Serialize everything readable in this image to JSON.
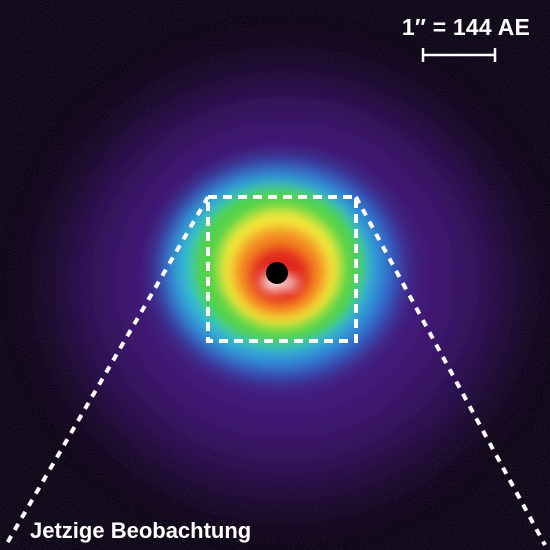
{
  "image": {
    "scale_label": "1″ = 144 AE",
    "caption": "Jetzige Beobachtung",
    "colors": {
      "background": "#0a0410",
      "halo_outer": "#4a1f86",
      "halo_blue": "#2f7ae0",
      "cyan": "#36c9d6",
      "green": "#52d24a",
      "yellow": "#f2e83a",
      "orange": "#f48a22",
      "red": "#e0261c",
      "core_white": "#ffffff",
      "star_center": "#000000",
      "markings": "#ffffff"
    }
  }
}
